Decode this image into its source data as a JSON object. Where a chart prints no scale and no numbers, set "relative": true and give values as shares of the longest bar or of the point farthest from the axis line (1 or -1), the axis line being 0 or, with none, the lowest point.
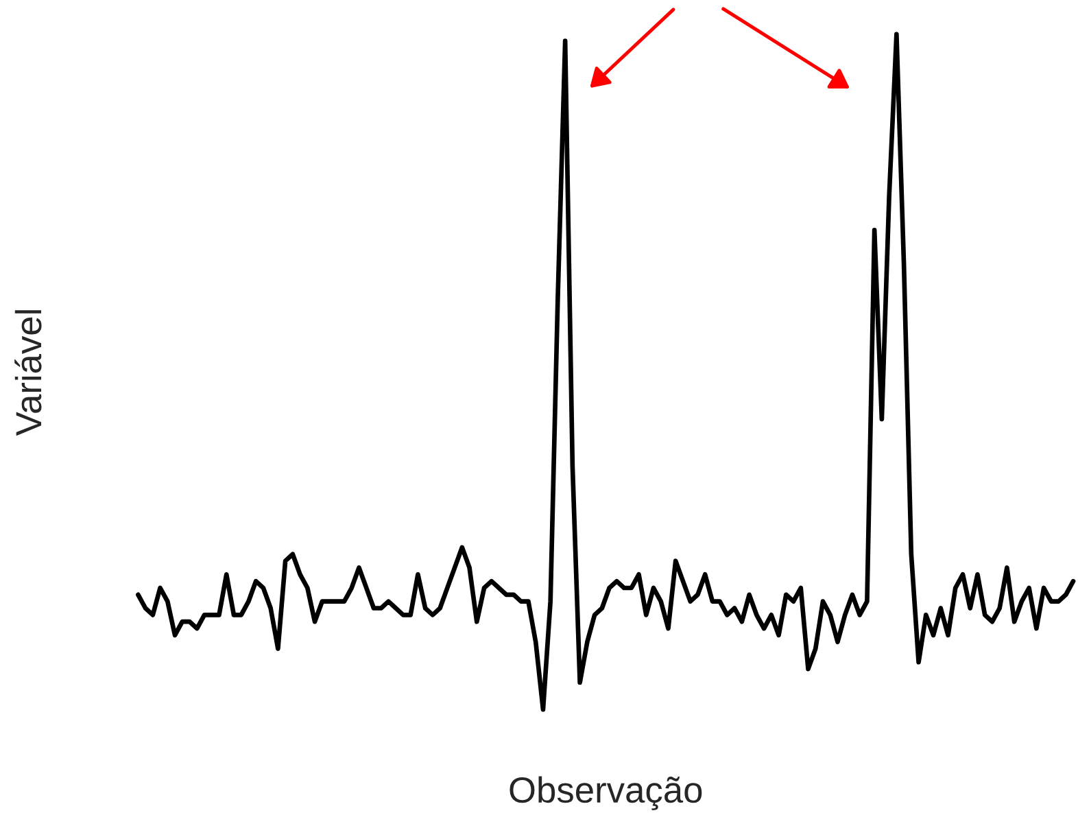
{
  "chart_data": {
    "type": "line",
    "relative": true,
    "xlabel": "Observação",
    "ylabel": "Variável",
    "categories": [
      null,
      null,
      null,
      null,
      null,
      null,
      null,
      null,
      null,
      null,
      null,
      null,
      null,
      null,
      null,
      null,
      null,
      null,
      null,
      null,
      null,
      null,
      null,
      null,
      null,
      null,
      null,
      null,
      null,
      null,
      null,
      null,
      null,
      null,
      null,
      null,
      null,
      null,
      null,
      null,
      null,
      null,
      null,
      null,
      null,
      null,
      null,
      null,
      null,
      null,
      null,
      null,
      null,
      null,
      null,
      null,
      null,
      null,
      null,
      null,
      null,
      null,
      null,
      null,
      null,
      null,
      null,
      null,
      null,
      null,
      null,
      null,
      null,
      null,
      null,
      null,
      null,
      null,
      null,
      null,
      null,
      null,
      null,
      null,
      null,
      null,
      null,
      null,
      null,
      null,
      null,
      null,
      null,
      null,
      null,
      null,
      null,
      null,
      null,
      null,
      null,
      null,
      null,
      null,
      null,
      null,
      null,
      null,
      null,
      null,
      null,
      null,
      null,
      null,
      null,
      null,
      null,
      null,
      null,
      null,
      null,
      null,
      null,
      null,
      null,
      null,
      null,
      null
    ],
    "series": [
      {
        "color": "#000000",
        "values": [
          0.17,
          0.15,
          0.14,
          0.18,
          0.16,
          0.11,
          0.13,
          0.13,
          0.12,
          0.14,
          0.14,
          0.14,
          0.2,
          0.14,
          0.14,
          0.16,
          0.19,
          0.18,
          0.15,
          0.09,
          0.22,
          0.23,
          0.2,
          0.18,
          0.13,
          0.16,
          0.16,
          0.16,
          0.16,
          0.18,
          0.21,
          0.18,
          0.15,
          0.15,
          0.16,
          0.15,
          0.14,
          0.14,
          0.2,
          0.15,
          0.14,
          0.15,
          0.18,
          0.21,
          0.24,
          0.21,
          0.13,
          0.18,
          0.19,
          0.18,
          0.17,
          0.17,
          0.16,
          0.16,
          0.1,
          0.0,
          0.16,
          0.61,
          0.99,
          0.36,
          0.04,
          0.1,
          0.14,
          0.15,
          0.18,
          0.19,
          0.18,
          0.18,
          0.2,
          0.14,
          0.18,
          0.16,
          0.12,
          0.22,
          0.19,
          0.16,
          0.17,
          0.2,
          0.16,
          0.16,
          0.14,
          0.15,
          0.13,
          0.17,
          0.14,
          0.12,
          0.14,
          0.11,
          0.17,
          0.16,
          0.18,
          0.06,
          0.09,
          0.16,
          0.14,
          0.1,
          0.14,
          0.17,
          0.14,
          0.16,
          0.71,
          0.43,
          0.76,
          1.0,
          0.66,
          0.23,
          0.07,
          0.14,
          0.11,
          0.15,
          0.11,
          0.18,
          0.2,
          0.15,
          0.2,
          0.14,
          0.13,
          0.15,
          0.21,
          0.13,
          0.16,
          0.18,
          0.12,
          0.18,
          0.16,
          0.16,
          0.17,
          0.19
        ]
      }
    ],
    "marker": "none",
    "line_style": "solid",
    "grid": false,
    "legend": false
  }
}
